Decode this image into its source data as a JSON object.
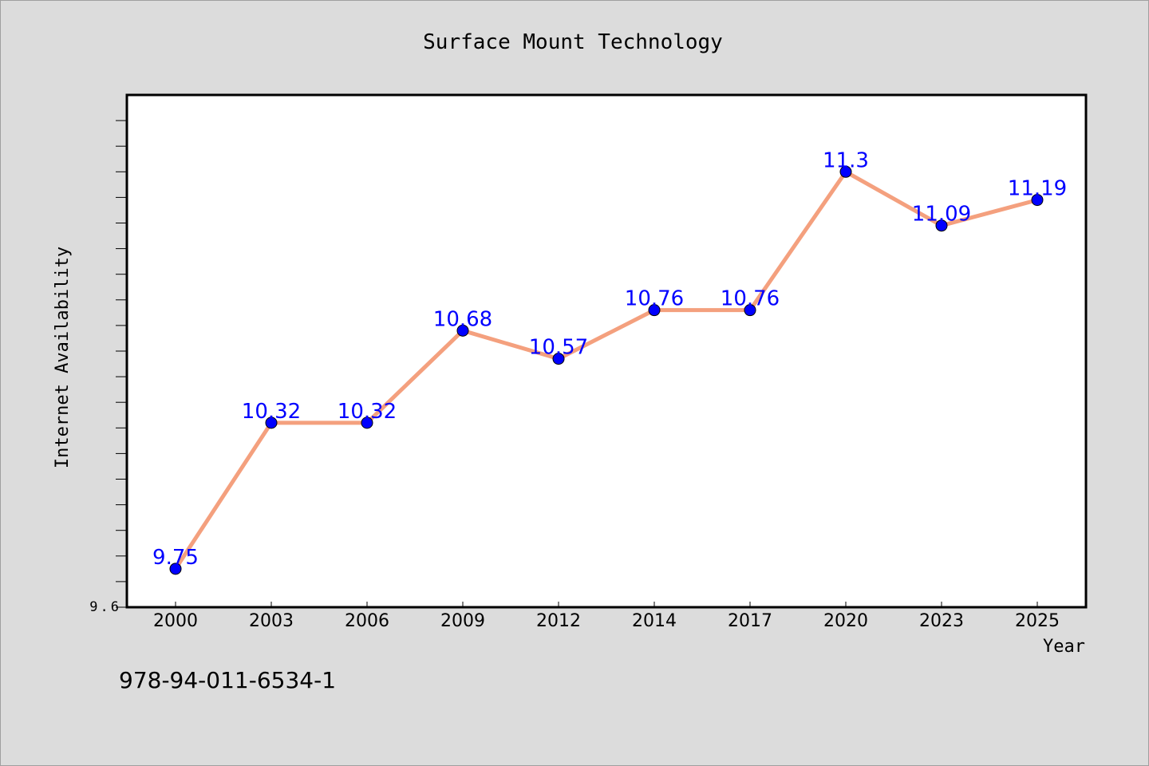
{
  "chart_data": {
    "type": "line",
    "title": "Surface Mount Technology",
    "xlabel": "Year",
    "ylabel": "Internet Availability",
    "categories": [
      "2000",
      "2003",
      "2006",
      "2009",
      "2012",
      "2014",
      "2017",
      "2020",
      "2023",
      "2025"
    ],
    "series": [
      {
        "values": [
          9.75,
          10.32,
          10.32,
          10.68,
          10.57,
          10.76,
          10.76,
          11.3,
          11.09,
          11.19
        ],
        "labels": [
          "9.75",
          "10.32",
          "10.32",
          "10.68",
          "10.57",
          "10.76",
          "10.76",
          "11.3",
          "11.09",
          "11.19"
        ]
      }
    ],
    "ylim": [
      9.6,
      11.6
    ],
    "ytick_labels": [
      "9.6"
    ],
    "grid": false,
    "legend": "none",
    "colors": {
      "line": "#f4a07e",
      "marker": "#0000ff",
      "data_label": "#0000ff",
      "plot_background": "#ffffff",
      "figure_background": "#dcdcdc"
    }
  },
  "footer": {
    "isbn": "978-94-011-6534-1"
  }
}
